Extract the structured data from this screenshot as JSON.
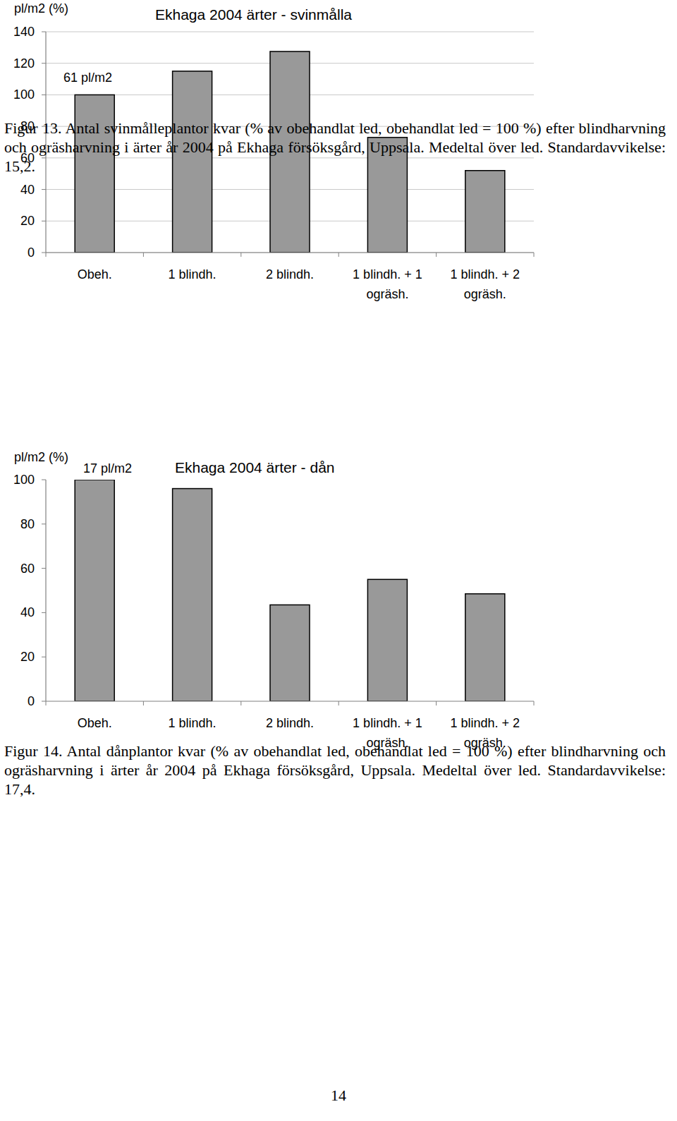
{
  "chart_data": [
    {
      "type": "bar",
      "title": "Ekhaga 2004 ärter - svinmålla",
      "y_label": "pl/m2 (%)",
      "annotation": "61 pl/m2",
      "categories": [
        "Obeh.",
        "1 blindh.",
        "2 blindh.",
        "1 blindh. + 1\nogräsh.",
        "1 blindh. + 2\nogräsh."
      ],
      "values": [
        100,
        115,
        127.5,
        73,
        52
      ],
      "color": "#999999",
      "ylim": [
        0,
        140
      ],
      "yticks": [
        0,
        20,
        40,
        60,
        80,
        100,
        120,
        140
      ],
      "grid": true
    },
    {
      "type": "bar",
      "title": "Ekhaga 2004 ärter - dån",
      "y_label": "pl/m2 (%)",
      "annotation": "17 pl/m2",
      "categories": [
        "Obeh.",
        "1 blindh.",
        "2 blindh.",
        "1 blindh. + 1\nogräsh.",
        "1 blindh. + 2\nogräsh."
      ],
      "values": [
        100,
        96,
        43.5,
        55,
        48.5
      ],
      "color": "#999999",
      "ylim": [
        0,
        100
      ],
      "yticks": [
        0,
        20,
        40,
        60,
        80,
        100
      ],
      "grid": false
    }
  ],
  "page": {
    "captions": [
      "Figur 13. Antal svinmålleplantor kvar (% av obehandlat led, obehandlat led = 100 %) efter blindharvning och ogräsharvning i ärter år 2004 på Ekhaga försöksgård, Uppsala. Medeltal över led. Standardavvikelse: 15,2.",
      "Figur 14. Antal dånplantor kvar (% av obehandlat led, obehandlat led = 100 %) efter blindharvning och ogräsharvning i ärter år 2004 på Ekhaga försöksgård, Uppsala. Medeltal över led. Standardavvikelse: 17,4."
    ],
    "page_number": "14"
  }
}
